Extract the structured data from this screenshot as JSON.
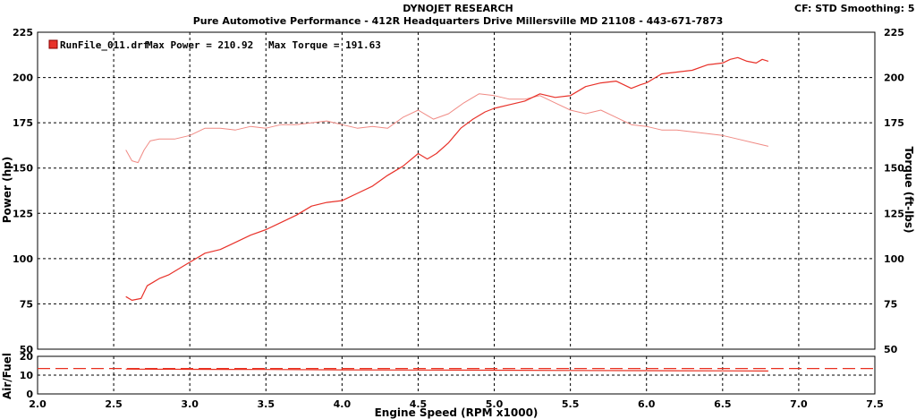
{
  "header": {
    "title": "DYNOJET RESEARCH",
    "subtitle": "Pure Automotive Performance - 412R Headquarters Drive Millersville MD 21108 - 443-671-7873",
    "cf_info": "CF: STD   Smoothing: 5"
  },
  "legend": {
    "run_file": "RunFile_011.drf",
    "max_power_text": "Max Power = 210.92",
    "max_torque_text": "Max Torque = 191.63",
    "swatch_color": "#e8322a"
  },
  "colors": {
    "power": "#e8322a",
    "torque": "#f08a84",
    "afr": "#e83020"
  },
  "chart_data": [
    {
      "type": "line",
      "title": "",
      "xlabel": "Engine Speed (RPM x1000)",
      "ylabel": "Power (hp)",
      "y2label": "Torque (ft-lbs)",
      "xlim": [
        2.0,
        7.5
      ],
      "ylim": [
        50,
        225
      ],
      "y2lim": [
        50,
        225
      ],
      "x_ticks": [
        "2.0",
        "2.5",
        "3.0",
        "3.5",
        "4.0",
        "4.5",
        "5.0",
        "5.5",
        "6.0",
        "6.5",
        "7.0",
        "7.5"
      ],
      "y_ticks": [
        "225",
        "200",
        "175",
        "150",
        "125",
        "100",
        "75",
        "50"
      ],
      "y2_ticks": [
        "225",
        "200",
        "175",
        "150",
        "125",
        "100",
        "75",
        "50"
      ],
      "grid": true,
      "legend_position": "top-left",
      "series": [
        {
          "name": "Power",
          "axis": "left",
          "x": [
            2.58,
            2.62,
            2.68,
            2.72,
            2.76,
            2.8,
            2.86,
            2.92,
            2.98,
            3.04,
            3.1,
            3.2,
            3.3,
            3.4,
            3.5,
            3.6,
            3.7,
            3.8,
            3.9,
            4.0,
            4.1,
            4.2,
            4.3,
            4.4,
            4.5,
            4.56,
            4.62,
            4.7,
            4.78,
            4.86,
            4.94,
            5.0,
            5.1,
            5.2,
            5.3,
            5.4,
            5.5,
            5.6,
            5.7,
            5.8,
            5.9,
            5.96,
            6.0,
            6.1,
            6.2,
            6.3,
            6.4,
            6.5,
            6.55,
            6.6,
            6.66,
            6.72,
            6.76,
            6.8
          ],
          "values": [
            79,
            77,
            78,
            85,
            87,
            89,
            91,
            94,
            97,
            100,
            103,
            105,
            109,
            113,
            116,
            120,
            124,
            129,
            131,
            132,
            136,
            140,
            146,
            151,
            158,
            155,
            158,
            164,
            172,
            177,
            181,
            183,
            185,
            187,
            191,
            189,
            190,
            195,
            197,
            198,
            194,
            196,
            197,
            202,
            203,
            204,
            207,
            208,
            210,
            211,
            209,
            208,
            210,
            209
          ]
        },
        {
          "name": "Torque",
          "axis": "right",
          "x": [
            2.58,
            2.62,
            2.66,
            2.7,
            2.74,
            2.8,
            2.9,
            3.0,
            3.1,
            3.2,
            3.3,
            3.4,
            3.5,
            3.6,
            3.7,
            3.8,
            3.9,
            4.0,
            4.1,
            4.2,
            4.3,
            4.4,
            4.5,
            4.6,
            4.7,
            4.8,
            4.9,
            5.0,
            5.1,
            5.2,
            5.3,
            5.4,
            5.5,
            5.6,
            5.7,
            5.8,
            5.9,
            6.0,
            6.1,
            6.2,
            6.3,
            6.4,
            6.5,
            6.6,
            6.7,
            6.8
          ],
          "values": [
            160,
            154,
            153,
            160,
            165,
            166,
            166,
            168,
            172,
            172,
            171,
            173,
            172,
            174,
            174,
            175,
            176,
            174,
            172,
            173,
            172,
            178,
            182,
            177,
            180,
            186,
            191,
            190,
            188,
            188,
            190,
            186,
            182,
            180,
            182,
            178,
            174,
            173,
            171,
            171,
            170,
            169,
            168,
            166,
            164,
            162
          ]
        }
      ]
    },
    {
      "type": "line",
      "xlabel": "",
      "ylabel": "Air/Fuel",
      "xlim": [
        2.0,
        7.5
      ],
      "ylim": [
        0,
        20
      ],
      "y_ticks": [
        "20",
        "10",
        "0"
      ],
      "grid": true,
      "series": [
        {
          "name": "",
          "x": [
            2.58,
            3.0,
            3.5,
            4.0,
            4.5,
            5.0,
            5.5,
            6.0,
            6.5,
            6.8
          ],
          "values": [
            13.2,
            13.1,
            13.0,
            12.8,
            12.7,
            12.6,
            12.5,
            12.4,
            12.3,
            12.2
          ]
        }
      ],
      "target_afr": 13.5
    }
  ]
}
